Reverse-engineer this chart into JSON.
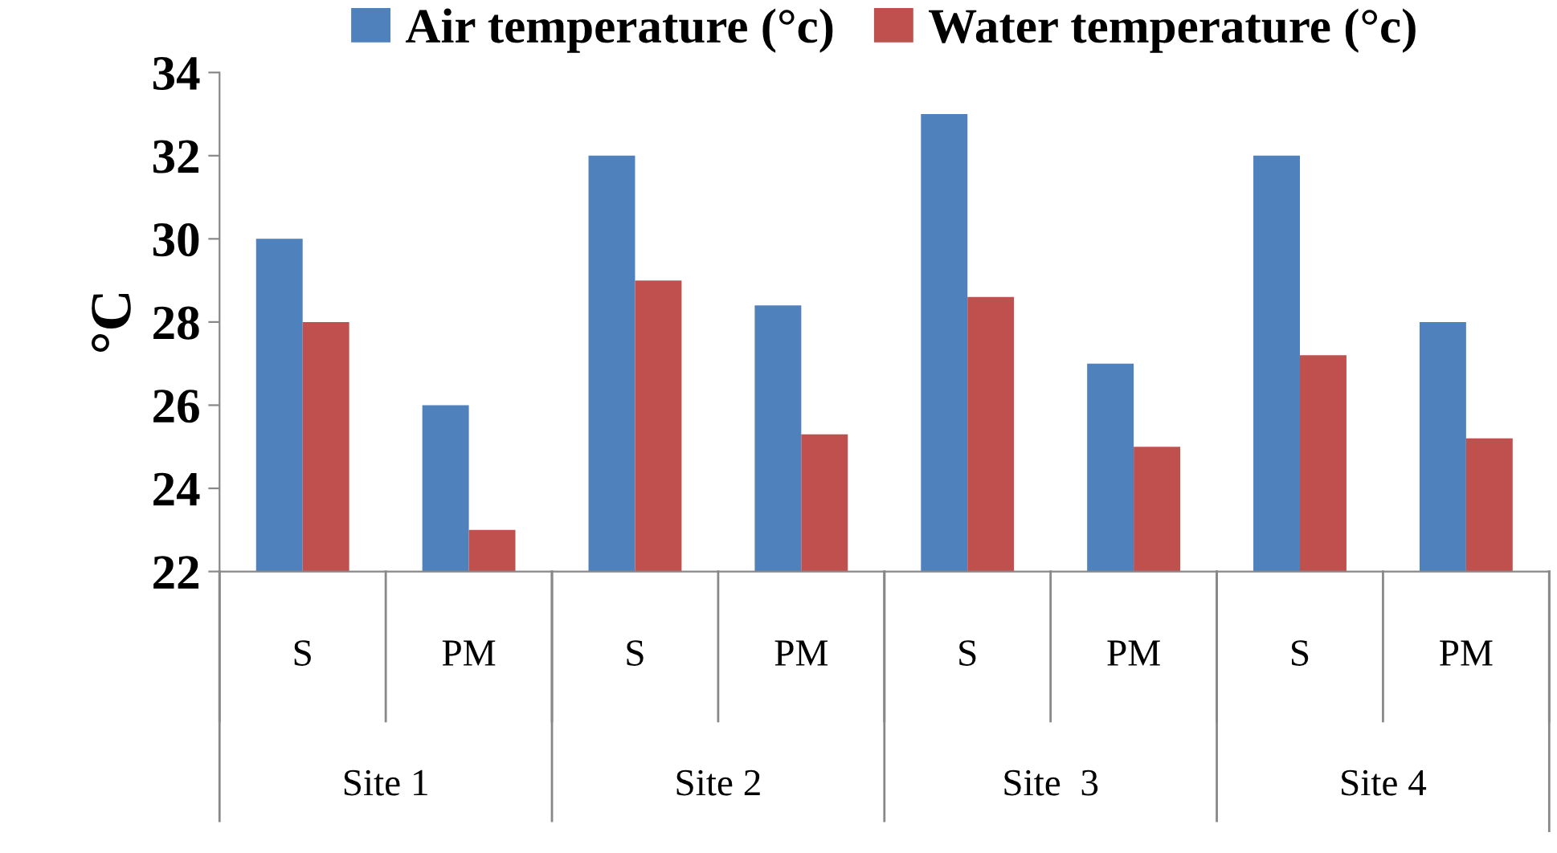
{
  "chart_data": {
    "type": "bar",
    "ylabel": "°C",
    "categories": [
      "S",
      "PM",
      "S",
      "PM",
      "S",
      "PM",
      "S",
      "PM"
    ],
    "series": [
      {
        "name": "Air temperature (°c)",
        "color": "#4f81bd",
        "values": [
          30,
          26,
          32,
          28.4,
          33,
          27,
          32,
          28
        ]
      },
      {
        "name": "Water temperature (°c)",
        "color": "#c0504d",
        "values": [
          28,
          23,
          29,
          25.3,
          28.6,
          25,
          27.2,
          25.2
        ]
      }
    ],
    "annotations": [
      "Site 1",
      "Site 2",
      "Site  3",
      "Site 4"
    ],
    "ylim": [
      22,
      34
    ],
    "yticks": [
      22,
      24,
      26,
      28,
      30,
      32,
      34
    ],
    "grid": false,
    "legend": "top"
  }
}
